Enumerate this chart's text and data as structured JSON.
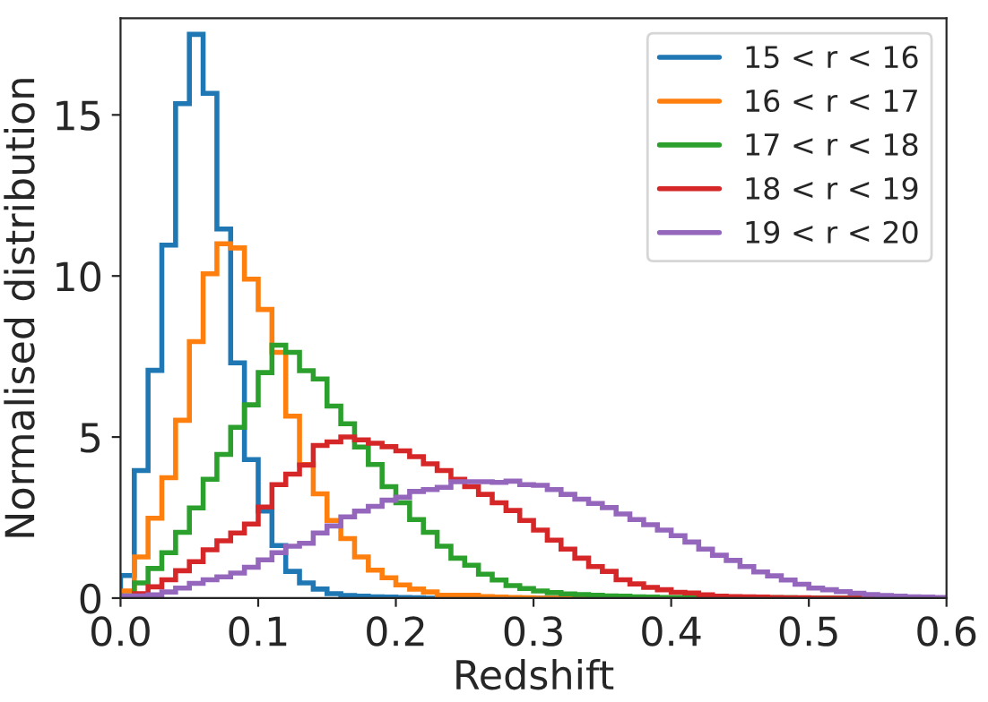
{
  "chart_data": {
    "type": "histogram",
    "xlabel": "Redshift",
    "ylabel": "Normalised distribution",
    "bins": [
      0.0,
      0.01,
      0.02,
      0.03,
      0.04,
      0.05,
      0.06,
      0.07,
      0.08,
      0.09,
      0.1,
      0.11,
      0.12,
      0.13,
      0.14,
      0.15,
      0.16,
      0.17,
      0.18,
      0.19,
      0.2,
      0.21,
      0.22,
      0.23,
      0.24,
      0.25,
      0.26,
      0.27,
      0.28,
      0.29,
      0.3,
      0.31,
      0.32,
      0.33,
      0.34,
      0.35,
      0.36,
      0.37,
      0.38,
      0.39,
      0.4,
      0.41,
      0.42,
      0.43,
      0.44,
      0.45,
      0.46,
      0.47,
      0.48,
      0.49,
      0.5,
      0.51,
      0.52,
      0.53,
      0.54,
      0.55,
      0.56,
      0.57,
      0.58,
      0.59,
      0.6
    ],
    "series": [
      {
        "name": "15 < r < 16",
        "color": "#1f77b4",
        "values": [
          0.7,
          3.96,
          7.07,
          10.96,
          15.35,
          17.5,
          15.67,
          11.46,
          7.3,
          4.3,
          2.7,
          1.63,
          0.83,
          0.47,
          0.28,
          0.14,
          0.08,
          0.06,
          0.04,
          0.03,
          0.02,
          0.01,
          0,
          0,
          0,
          0,
          0,
          0,
          0,
          0,
          0,
          0,
          0,
          0,
          0,
          0,
          0,
          0,
          0,
          0,
          0,
          0,
          0,
          0,
          0,
          0,
          0,
          0,
          0,
          0,
          0,
          0,
          0,
          0,
          0,
          0,
          0,
          0,
          0,
          0
        ]
      },
      {
        "name": "16 < r < 17",
        "color": "#ff7f0e",
        "values": [
          0.22,
          1.28,
          2.48,
          3.74,
          5.52,
          7.96,
          10.07,
          11.0,
          10.87,
          9.9,
          8.96,
          7.63,
          5.65,
          4.15,
          3.24,
          2.41,
          1.85,
          1.28,
          0.87,
          0.63,
          0.41,
          0.28,
          0.19,
          0.09,
          0.09,
          0.09,
          0.05,
          0.03,
          0.02,
          0.01,
          0,
          0,
          0,
          0,
          0,
          0,
          0,
          0,
          0,
          0,
          0,
          0,
          0,
          0,
          0,
          0,
          0,
          0,
          0,
          0,
          0,
          0,
          0,
          0,
          0,
          0,
          0,
          0,
          0,
          0
        ]
      },
      {
        "name": "17 < r < 18",
        "color": "#2ca02c",
        "values": [
          0.07,
          0.47,
          0.92,
          1.41,
          2.04,
          2.8,
          3.69,
          4.46,
          5.3,
          6.0,
          7.0,
          7.85,
          7.63,
          7.06,
          6.8,
          5.96,
          5.41,
          4.69,
          4.15,
          3.46,
          2.96,
          2.44,
          2.04,
          1.61,
          1.24,
          1.02,
          0.74,
          0.56,
          0.39,
          0.3,
          0.22,
          0.17,
          0.13,
          0.11,
          0.09,
          0.07,
          0.06,
          0.04,
          0.03,
          0.02,
          0.02,
          0.01,
          0.01,
          0.01,
          0.01,
          0.01,
          0.01,
          0.01,
          0.01,
          0,
          0,
          0,
          0,
          0,
          0,
          0,
          0,
          0,
          0,
          0
        ]
      },
      {
        "name": "18 < r < 19",
        "color": "#d62728",
        "values": [
          0.05,
          0.14,
          0.35,
          0.57,
          0.85,
          1.13,
          1.5,
          1.78,
          2.02,
          2.3,
          2.83,
          3.52,
          3.85,
          4.13,
          4.74,
          4.85,
          5.0,
          4.91,
          4.81,
          4.7,
          4.57,
          4.39,
          4.17,
          3.96,
          3.69,
          3.46,
          3.22,
          2.96,
          2.72,
          2.41,
          2.11,
          1.8,
          1.52,
          1.24,
          0.98,
          0.83,
          0.57,
          0.44,
          0.33,
          0.26,
          0.18,
          0.16,
          0.1,
          0.06,
          0.05,
          0.04,
          0.03,
          0.02,
          0.01,
          0.01,
          0,
          0,
          0,
          0,
          0,
          0,
          0,
          0,
          0,
          0
        ]
      },
      {
        "name": "19 < r < 20",
        "color": "#9467bd",
        "values": [
          0.07,
          0.07,
          0.1,
          0.19,
          0.31,
          0.46,
          0.57,
          0.66,
          0.78,
          0.96,
          1.19,
          1.41,
          1.61,
          1.7,
          2.02,
          2.24,
          2.52,
          2.7,
          2.85,
          3.04,
          3.13,
          3.31,
          3.37,
          3.44,
          3.61,
          3.61,
          3.61,
          3.59,
          3.63,
          3.52,
          3.5,
          3.37,
          3.22,
          3.07,
          2.94,
          2.81,
          2.61,
          2.44,
          2.28,
          2.11,
          1.94,
          1.74,
          1.52,
          1.33,
          1.17,
          0.98,
          0.81,
          0.69,
          0.56,
          0.43,
          0.31,
          0.26,
          0.2,
          0.15,
          0.11,
          0.08,
          0.06,
          0.04,
          0.03,
          0.02
        ]
      }
    ],
    "xlim": [
      0,
      0.6
    ],
    "xticks": [
      {
        "value": 0,
        "label": "0.0"
      },
      0.1,
      0.2,
      0.3,
      0.4,
      0.5,
      0.6
    ],
    "ylim": [
      0,
      18
    ],
    "yticks": [
      0,
      5,
      10,
      15
    ],
    "grid": false,
    "legend": "top right"
  }
}
